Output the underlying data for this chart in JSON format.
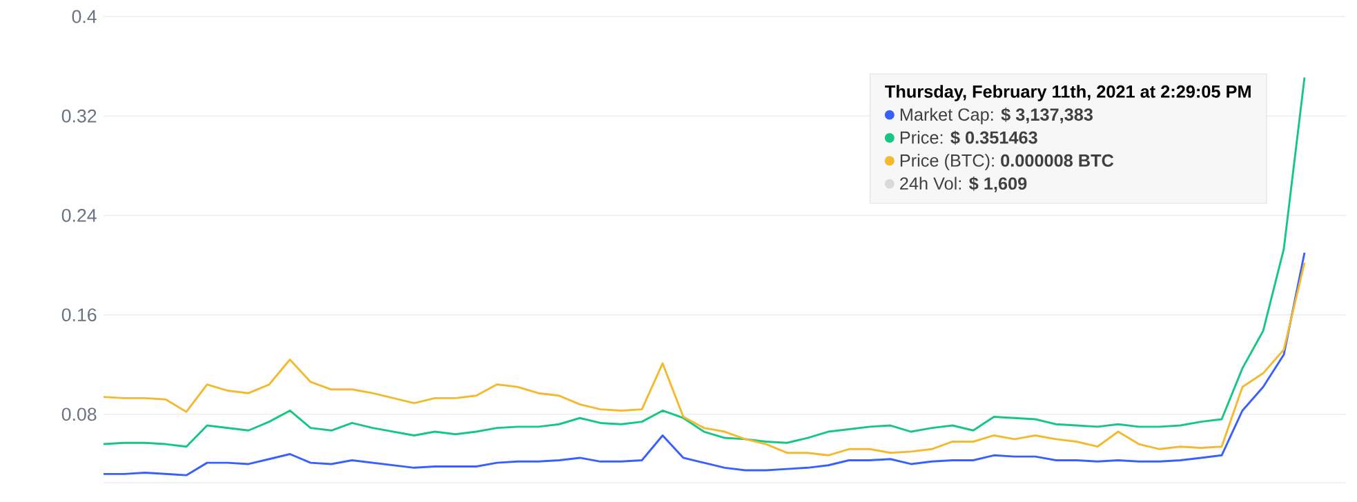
{
  "chart_data": {
    "type": "line",
    "categories": [
      null,
      null,
      null,
      null,
      null,
      null,
      null,
      null,
      null,
      null,
      null,
      null,
      null,
      null,
      null,
      null,
      null,
      null,
      null,
      null,
      null,
      null,
      null,
      null,
      null,
      null,
      null,
      null,
      null,
      null,
      null,
      null,
      null,
      null,
      null,
      null,
      null,
      null,
      null,
      null,
      null,
      null,
      null,
      null,
      null,
      null,
      null,
      null,
      null,
      null,
      null,
      null,
      null,
      null,
      null,
      null,
      null,
      null,
      null
    ],
    "series": [
      {
        "color": "#3861fb",
        "values": [
          0.032,
          0.032,
          0.033,
          0.032,
          0.031,
          0.041,
          0.041,
          0.04,
          0.044,
          0.048,
          0.041,
          0.04,
          0.043,
          0.041,
          0.039,
          0.037,
          0.038,
          0.038,
          0.038,
          0.041,
          0.042,
          0.042,
          0.043,
          0.045,
          0.042,
          0.042,
          0.043,
          0.063,
          0.045,
          0.041,
          0.037,
          0.035,
          0.035,
          0.036,
          0.037,
          0.039,
          0.043,
          0.043,
          0.044,
          0.04,
          0.042,
          0.043,
          0.043,
          0.047,
          0.046,
          0.046,
          0.043,
          0.043,
          0.042,
          0.043,
          0.042,
          0.042,
          0.043,
          0.045,
          0.047,
          0.083,
          0.102,
          0.128,
          0.21
        ]
      },
      {
        "color": "#16c784",
        "values": [
          0.056,
          0.057,
          0.057,
          0.056,
          0.054,
          0.071,
          0.069,
          0.067,
          0.074,
          0.083,
          0.069,
          0.067,
          0.073,
          0.069,
          0.066,
          0.063,
          0.066,
          0.064,
          0.066,
          0.069,
          0.07,
          0.07,
          0.072,
          0.077,
          0.073,
          0.072,
          0.074,
          0.083,
          0.077,
          0.066,
          0.061,
          0.06,
          0.058,
          0.057,
          0.061,
          0.066,
          0.068,
          0.07,
          0.071,
          0.066,
          0.069,
          0.071,
          0.067,
          0.078,
          0.077,
          0.076,
          0.072,
          0.071,
          0.07,
          0.072,
          0.07,
          0.07,
          0.071,
          0.074,
          0.076,
          0.117,
          0.147,
          0.213,
          0.351
        ]
      },
      {
        "color": "#f3ba2f",
        "values": [
          0.094,
          0.093,
          0.093,
          0.092,
          0.082,
          0.104,
          0.099,
          0.097,
          0.104,
          0.124,
          0.106,
          0.1,
          0.1,
          0.097,
          0.093,
          0.089,
          0.093,
          0.093,
          0.095,
          0.104,
          0.102,
          0.097,
          0.095,
          0.088,
          0.084,
          0.083,
          0.084,
          0.121,
          0.078,
          0.069,
          0.066,
          0.06,
          0.056,
          0.049,
          0.049,
          0.047,
          0.052,
          0.052,
          0.049,
          0.05,
          0.052,
          0.058,
          0.058,
          0.063,
          0.06,
          0.063,
          0.06,
          0.058,
          0.054,
          0.066,
          0.056,
          0.052,
          0.054,
          0.053,
          0.054,
          0.102,
          0.113,
          0.132,
          0.202
        ]
      }
    ],
    "ylim": [
      0.025,
      0.4
    ],
    "yticks": [
      0.08,
      0.16,
      0.24,
      0.32,
      0.4
    ],
    "grid": "y",
    "tick_labels": "y",
    "marker": "none",
    "line_style": "solid",
    "annotations": [
      "Thursday, February 11th, 2021 at 2:29:05 PM",
      "Market Cap: **$ 3,137,383**",
      "Price: **$ 0.351463**",
      "Price (BTC): **0.000008 BTC**",
      "24h Vol: **$ 1,609**"
    ]
  }
}
